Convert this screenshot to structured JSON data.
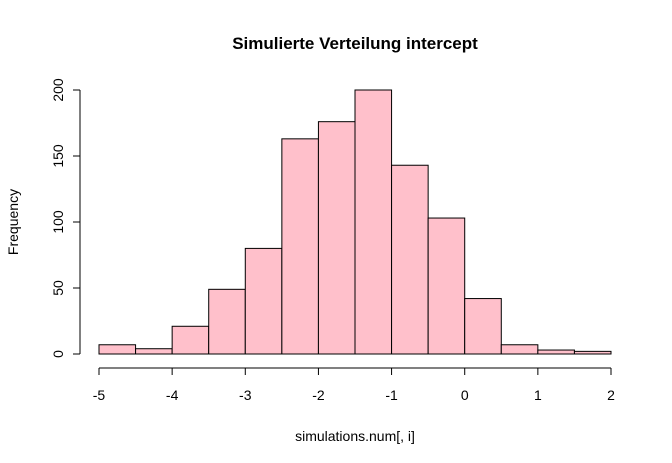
{
  "chart_data": {
    "type": "bar",
    "title": "Simulierte Verteilung intercept",
    "xlabel": "simulations.num[, i]",
    "ylabel": "Frequency",
    "bin_edges": [
      -5,
      -4.5,
      -4,
      -3.5,
      -3,
      -2.5,
      -2,
      -1.5,
      -1,
      -0.5,
      0,
      0.5,
      1,
      1.5,
      2
    ],
    "values": [
      7,
      4,
      21,
      49,
      80,
      163,
      176,
      200,
      143,
      103,
      42,
      7,
      3,
      2
    ],
    "xlim": [
      -5,
      2
    ],
    "ylim": [
      0,
      200
    ],
    "x_ticks": [
      "-5",
      "-4",
      "-3",
      "-2",
      "-1",
      "0",
      "1",
      "2"
    ],
    "y_ticks": [
      "0",
      "50",
      "100",
      "150",
      "200"
    ],
    "bar_color": "#FFC0CB",
    "border_color": "#000000",
    "grid": false,
    "legend": "none"
  }
}
